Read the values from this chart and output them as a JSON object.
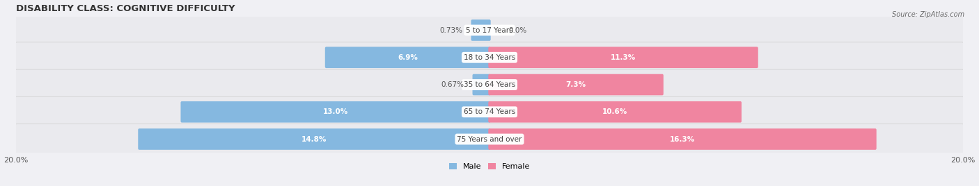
{
  "title": "DISABILITY CLASS: COGNITIVE DIFFICULTY",
  "source": "Source: ZipAtlas.com",
  "categories": [
    "5 to 17 Years",
    "18 to 34 Years",
    "35 to 64 Years",
    "65 to 74 Years",
    "75 Years and over"
  ],
  "male_values": [
    0.73,
    6.9,
    0.67,
    13.0,
    14.8
  ],
  "female_values": [
    0.0,
    11.3,
    7.3,
    10.6,
    16.3
  ],
  "male_color": "#85B8E0",
  "female_color": "#F085A0",
  "male_label": "Male",
  "female_label": "Female",
  "xlim": 20.0,
  "bg_row_color": "#e8e8ec",
  "title_fontsize": 9.5,
  "label_fontsize": 7.5,
  "value_fontsize": 7.5,
  "tick_fontsize": 8
}
